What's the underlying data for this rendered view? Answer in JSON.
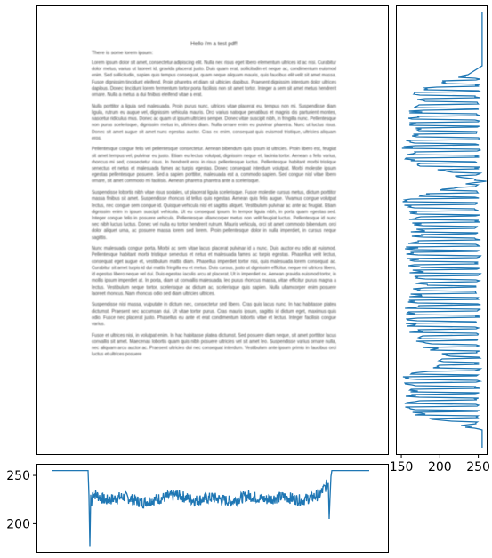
{
  "document": {
    "title": "Hello i'm a test pdf!",
    "intro": "There is some lorem ipsum:",
    "paragraphs": [
      "Lorem ipsum dolor sit amet, consectetur adipiscing elit. Nulla nec risus eget libero elementum ultrices id ac nisi. Curabitur dolor metus, varius ut laoreet id, gravida placerat justo. Duis quam erat, sollicitudin et neque ac, condimentum euismod enim. Sed sollicitudin, sapien quis tempus consequat, quam neque aliquam mauris, quis faucibus elit velit sit amet massa. Fusce dignissim tincidunt eleifend. Proin pharetra et diam sit ultricies dapibus. Praesent dignissim interdum dolor ultrices dapibus. Donec tincidunt lorem fermentum tortor porta facilisis non sit amet tortor. Integer a sem sit amet metus hendrerit ornare. Nulla a metus a dui finibus eleifend vitae a erat.",
      "Nulla porttitor a ligula sed malesuada. Proin purus nunc, ultrices vitae placerat eu, tempus non mi. Suspendisse diam ligula, rutrum eu augue vel, dignissim vehicula mauris. Orci varius natoque penatibus et magnis dis parturient montes, nascetur ridiculus mus. Donec ac quam ut ipsum ultricies semper. Donec vitae suscipit nibh, in fringilla nunc. Pellentesque non purus scelerisque, dignissim metus in, ultricies diam. Nulla ornare enim eu pulvinar pharetra. Nunc ut luctus risus. Donec sit amet augue sit amet nunc egestas auctor. Cras ex enim, consequat quis euismod tristique, ultricies aliquam eros.",
      "Pellentesque congue felis vel pellentesque consectetur. Aenean bibendum quis ipsum id ultricies. Proin libero est, feugiat sit amet tempus vel, pulvinar eu justo. Etiam eu lectus volutpat, dignissim neque et, lacinia tortor. Aenean a felis varius, rhoncus mi sed, consectetur risus. In hendrerit eros in risus pellentesque luctus. Pellentesque habitant morbi tristique senectus et netus et malesuada fames ac turpis egestas. Donec consequat interdum volutpat. Morbi molestie ipsum egestas pellentesque posuere. Sed a sapien porttitor, malesuada est a, commodo sapien. Sed congue nisl vitae libero ornare, sit amet commodo mi facilisis. Aenean pharetra pharetra ante a scelerisque.",
      "Suspendisse lobortis nibh vitae risus sodales, ut placerat ligula scelerisque. Fusce molestie cursus metus, dictum porttitor massa finibus sit amet. Suspendisse rhoncus id tellus quis egestas. Aenean quis felis augue. Vivamus congue volutpat lectus, nec congue sem congue id. Quisque vehicula nisl et sagittis aliquet. Vestibulum pulvinar ac ante ac feugiat. Etiam dignissim enim in ipsum suscipit vehicula. Ut eu consequat ipsum. In tempor ligula nibh, in porta quam egestas sed. Integer congue felis in posuere vehicula. Pellentesque ullamcorper metus non velit feugiat luctus. Pellentesque id nunc nec nibh luctus luctus. Donec vel nulla eu tortor hendrerit rutrum. Mauris vehicula, orci sit amet commodo bibendum, orci dolor aliquet urna, ac posuere massa lorem sed lorem. Proin pellentesque dolor in nulla imperdiet, in cursus neque sagittis.",
      "Nunc malesuada congue porta. Morbi ac sem vitae lacus placerat pulvinar id a nunc. Duis auctor eu odio at euismod. Pellentesque habitant morbi tristique senectus et netus et malesuada fames ac turpis egestas. Phasellus velit lectus, consequat eget augue et, vestibulum mattis diam. Phasellus imperdiet tortor nisi, quis malesuada lorem consequat ac. Curabitur sit amet turpis id dui mattis fringilla eu et metus. Duis cursus, justo ut dignissim efficitur, neque mi ultrices libero, id egestas libero neque vel dui. Duis egestas iaculis arcu at placerat. Ut in imperdiet ex. Aenean gravida euismod tortor, in mollis ipsum imperdiet at. In porta, diam ut convallis malesuada, leo purus rhoncus massa, vitae efficitur purus magna a lectus. Vestibulum neque tortor, scelerisque ac dictum ac, scelerisque quis sapien. Nulla ullamcorper enim posuere laoreet rhoncus. Nam rhoncus odio sed diam ultricies ultrices.",
      "Suspendisse nisi massa, vulputate in dictum nec, consectetur sed libero. Cras quis lacus nunc. In hac habitasse platea dictumst. Praesent nec accumsan dui. Ut vitae tortor purus. Cras mauris ipsum, sagittis id dictum eget, maximus quis odio. Fusce nec placerat justo. Phasellus eu ante et erat condimentum lobortis vitae et lectus. Integer facilisis congue varius.",
      "Fusce et ultrices nisi, in volutpat enim. In hac habitasse platea dictumst. Sed posuere diam neque, sit amet porttitor lacus convallis sit amet. Maecenas lobortis quam quis nibh posuere ultricies vel sit amet leo. Suspendisse varius ornare nulla, nec aliquam arcu auctor ac. Praesent ultricies dui nec consequat interdum. Vestibulum ante ipsum primis in faucibus orci luctus et ultrices posuere"
    ]
  },
  "chart_data": [
    {
      "type": "line",
      "title": "",
      "xlabel": "",
      "ylabel": "",
      "orientation": "horizontal",
      "ylim": [
        170,
        262
      ],
      "yticks": [
        200,
        250
      ],
      "ytick_labels": [
        "200",
        "250"
      ],
      "grid": false,
      "color": "#1f77b4",
      "series": [
        {
          "x": [
            0,
            40,
            41,
            42,
            43,
            44,
            45,
            60,
            80,
            100,
            120,
            140,
            160,
            180,
            200,
            220,
            240,
            260,
            280,
            300,
            310,
            311,
            312,
            313,
            314,
            315,
            330,
            356
          ],
          "values": [
            255,
            255,
            229,
            176,
            230,
            218,
            232,
            224,
            228,
            222,
            226,
            230,
            224,
            227,
            223,
            229,
            225,
            228,
            224,
            230,
            242,
            205,
            228,
            249,
            255,
            255,
            255,
            255
          ]
        }
      ]
    },
    {
      "type": "line",
      "title": "",
      "xlabel": "",
      "ylabel": "",
      "orientation": "vertical",
      "xlim": [
        143,
        262
      ],
      "xticks": [
        150,
        200,
        250
      ],
      "xtick_labels": [
        "150",
        "200",
        "250"
      ],
      "grid": false,
      "color": "#1f77b4",
      "series": [
        {
          "y": [
            0,
            60,
            70,
            90,
            110,
            130,
            150,
            170,
            190,
            210,
            230,
            250,
            270,
            290,
            310,
            330,
            350,
            370,
            390,
            410,
            430,
            450,
            470,
            490
          ],
          "values": [
            255,
            255,
            232,
            175,
            170,
            168,
            160,
            165,
            255,
            160,
            166,
            172,
            162,
            170,
            175,
            165,
            163,
            175,
            210,
            162,
            165,
            163,
            255,
            255
          ]
        }
      ]
    }
  ]
}
